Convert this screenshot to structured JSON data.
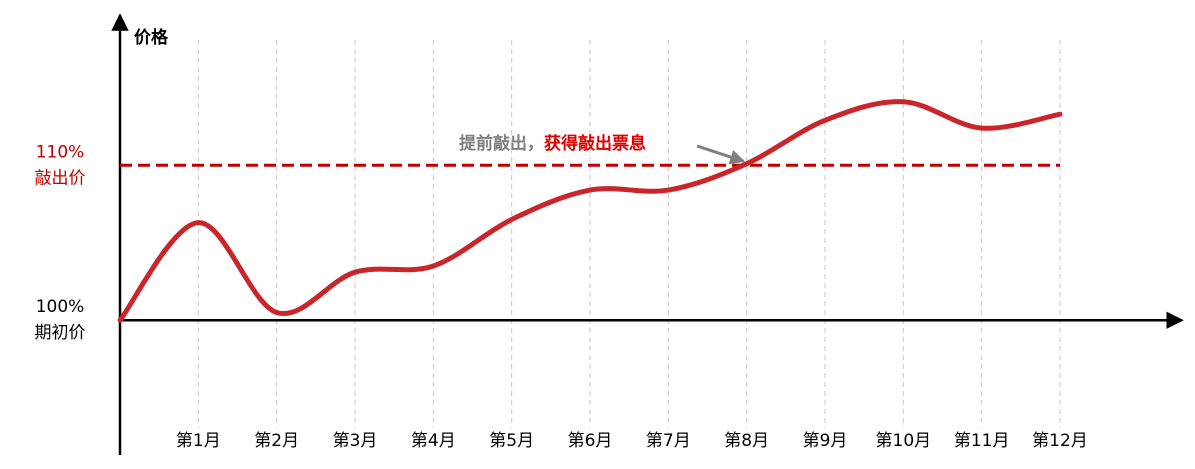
{
  "chart_data": {
    "type": "line",
    "y_label": "价格",
    "categories": [
      null,
      "第1月",
      "第2月",
      "第3月",
      "第4月",
      "第5月",
      "第6月",
      "第7月",
      "第8月",
      "第9月",
      "第10月",
      "第11月",
      "第12月"
    ],
    "series": [
      {
        "color": "#c9252b",
        "values": [
          100,
          106.3,
          100.5,
          103.1,
          103.5,
          106.5,
          108.4,
          108.4,
          110.1,
          112.9,
          114.1,
          112.4,
          113.3
        ]
      }
    ],
    "ylim": [
      91.3,
      119.7
    ],
    "yticks": [
      {
        "value": 100,
        "label": "100%",
        "note": "期初价",
        "color": "#000000"
      },
      {
        "value": 110,
        "label": "110%",
        "note": "敲出价",
        "color": "#c00000"
      }
    ],
    "knock_out": {
      "value": 110,
      "color": "#c00000"
    },
    "annotation": {
      "text": "提前敲出，",
      "color": "#7f7f7f",
      "highlight": "获得敲出票息",
      "highlight_color": "#e00000"
    },
    "grid": true
  }
}
